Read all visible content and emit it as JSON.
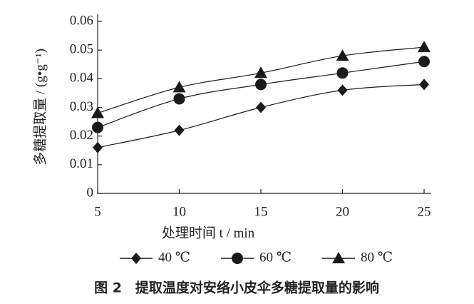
{
  "chart_data": {
    "type": "line",
    "xlabel": "处理时间 t / min",
    "ylabel": "多糖提取量 / (g•g⁻¹)",
    "caption": "图 2　提取温度对安络小皮伞多糖提取量的影响",
    "x": [
      5,
      10,
      15,
      20,
      25
    ],
    "series": [
      {
        "name": "40 ℃",
        "color": "#1a1a1a",
        "marker": "diamond",
        "values": [
          0.016,
          0.022,
          0.03,
          0.036,
          0.038
        ]
      },
      {
        "name": "60 ℃",
        "color": "#1a1a1a",
        "marker": "circle",
        "values": [
          0.023,
          0.033,
          0.038,
          0.042,
          0.046
        ]
      },
      {
        "name": "80 ℃",
        "color": "#1a1a1a",
        "marker": "triangle",
        "values": [
          0.028,
          0.037,
          0.042,
          0.048,
          0.051
        ]
      }
    ],
    "xlim": [
      5,
      25
    ],
    "xticks": [
      5,
      10,
      15,
      20,
      25
    ],
    "ylim": [
      0,
      0.06
    ],
    "yticks": [
      0,
      0.01,
      0.02,
      0.03,
      0.04,
      0.05,
      0.06
    ]
  }
}
